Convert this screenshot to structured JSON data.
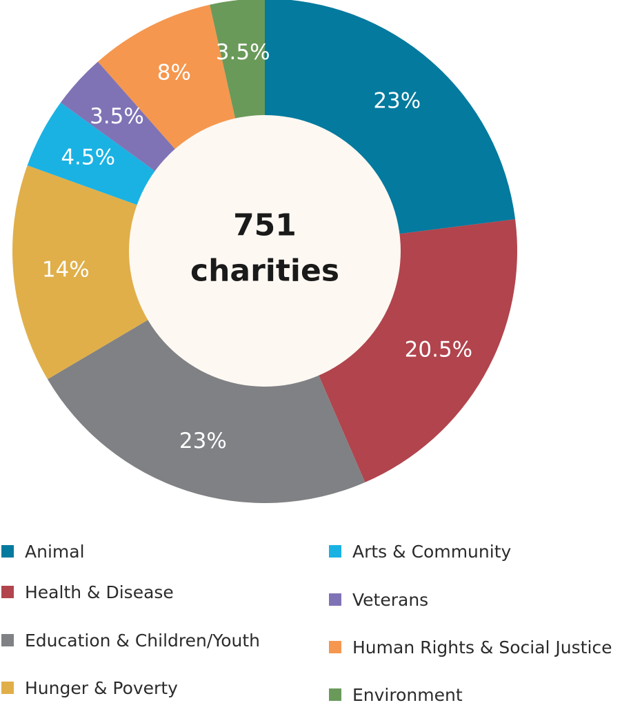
{
  "chart_data": {
    "type": "pie",
    "variant": "donut",
    "center_label": [
      "751",
      "charities"
    ],
    "slices": [
      {
        "label": "Animal",
        "value": 23,
        "display": "23%",
        "color": "#037A9E"
      },
      {
        "label": "Health & Disease",
        "value": 20.5,
        "display": "20.5%",
        "color": "#B1444D"
      },
      {
        "label": "Education & Children/Youth",
        "value": 23,
        "display": "23%",
        "color": "#808184"
      },
      {
        "label": "Hunger & Poverty",
        "value": 14,
        "display": "14%",
        "color": "#E0AF4A"
      },
      {
        "label": "Arts & Community",
        "value": 4.5,
        "display": "4.5%",
        "color": "#1AB2E3"
      },
      {
        "label": "Veterans",
        "value": 3.5,
        "display": "3.5%",
        "color": "#7F73B6"
      },
      {
        "label": "Human Rights & Social Justice",
        "value": 8,
        "display": "8%",
        "color": "#F5974F"
      },
      {
        "label": "Environment",
        "value": 3.5,
        "display": "3.5%",
        "color": "#6A9A5A"
      }
    ],
    "legend_position": "bottom",
    "center_fill": "#FDF8F2"
  }
}
